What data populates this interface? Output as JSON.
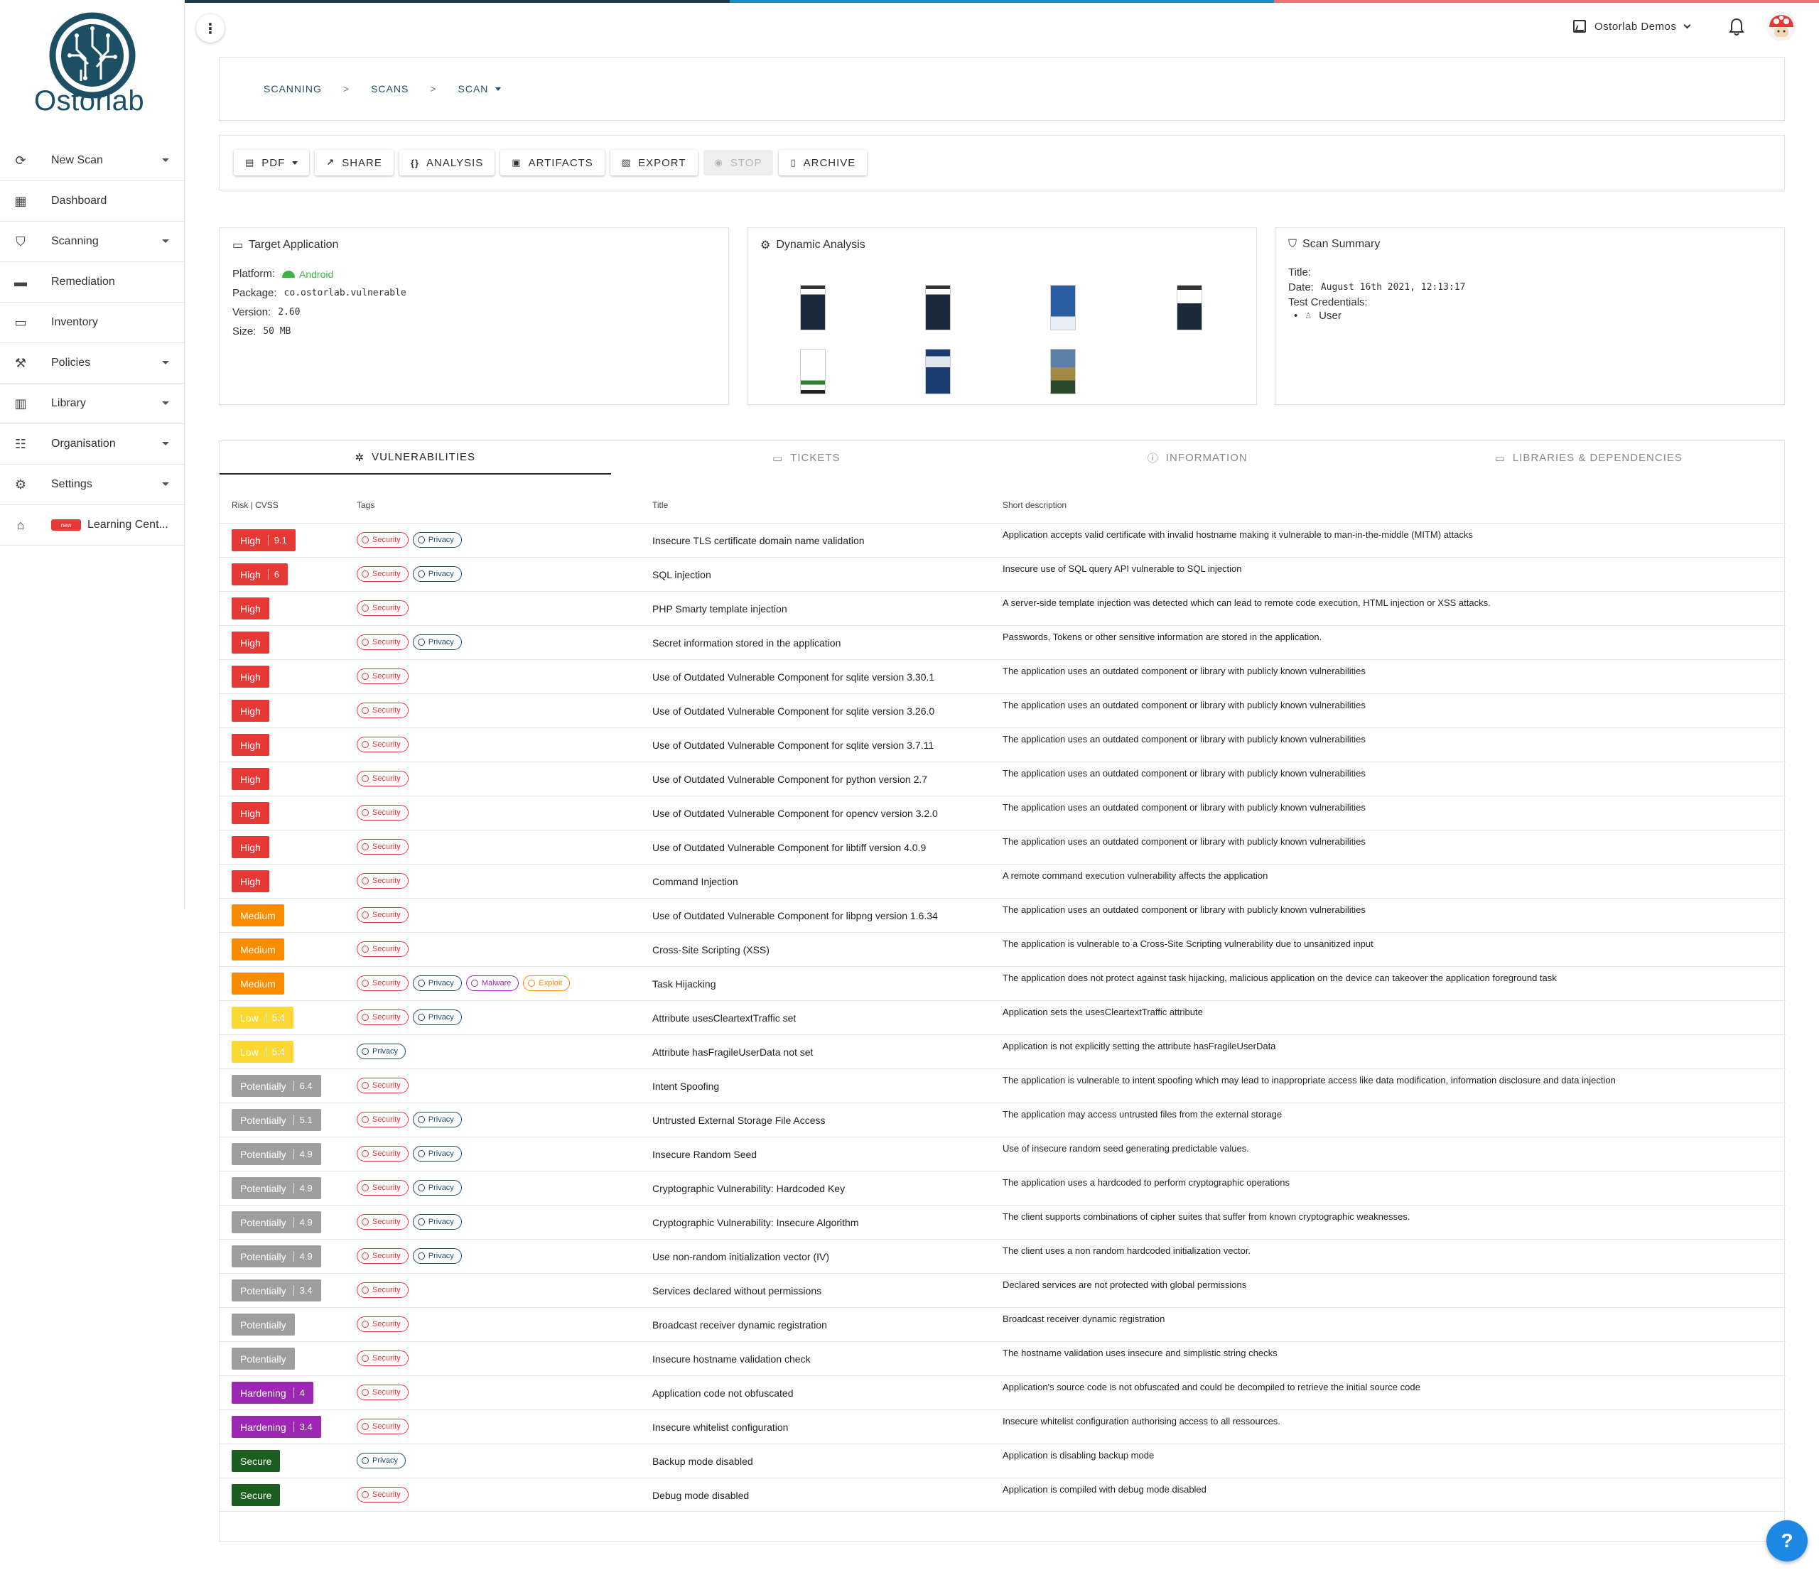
{
  "brand": {
    "name": "Ostorlab"
  },
  "stripe_colors": [
    "#1d3b4a",
    "#1e88c5",
    "#e57373"
  ],
  "sidebar": {
    "items": [
      {
        "label": "New Scan",
        "icon": "new-scan-icon",
        "dropdown": true
      },
      {
        "label": "Dashboard",
        "icon": "dashboard-icon",
        "dropdown": false
      },
      {
        "label": "Scanning",
        "icon": "shield-icon",
        "dropdown": true
      },
      {
        "label": "Remediation",
        "icon": "ticket-icon",
        "dropdown": false
      },
      {
        "label": "Inventory",
        "icon": "calendar-icon",
        "dropdown": false
      },
      {
        "label": "Policies",
        "icon": "gavel-icon",
        "dropdown": true
      },
      {
        "label": "Library",
        "icon": "library-icon",
        "dropdown": true
      },
      {
        "label": "Organisation",
        "icon": "people-icon",
        "dropdown": true
      },
      {
        "label": "Settings",
        "icon": "gear-icon",
        "dropdown": true
      },
      {
        "label": "Learning Cent...",
        "icon": "school-icon",
        "dropdown": false,
        "badge": "new"
      }
    ]
  },
  "header": {
    "org_name": "Ostorlab Demos"
  },
  "breadcrumb": [
    "SCANNING",
    "SCANS",
    "SCAN"
  ],
  "toolbar": {
    "buttons": [
      {
        "label": "PDF",
        "icon": "pdf-icon",
        "disabled": false,
        "dropdown": true
      },
      {
        "label": "SHARE",
        "icon": "share-icon",
        "disabled": false
      },
      {
        "label": "ANALYSIS",
        "icon": "braces-icon",
        "disabled": false
      },
      {
        "label": "ARTIFACTS",
        "icon": "archive-box-icon",
        "disabled": false
      },
      {
        "label": "EXPORT",
        "icon": "file-export-icon",
        "disabled": false
      },
      {
        "label": "STOP",
        "icon": "stop-circle-icon",
        "disabled": true
      },
      {
        "label": "ARCHIVE",
        "icon": "trash-icon",
        "disabled": false
      }
    ]
  },
  "target": {
    "title": "Target Application",
    "platform_label": "Platform:",
    "platform": "Android",
    "package_label": "Package:",
    "package": "co.ostorlab.vulnerable",
    "version_label": "Version:",
    "version": "2.60",
    "size_label": "Size:",
    "size": "50 MB"
  },
  "dynamic": {
    "title": "Dynamic Analysis"
  },
  "summary": {
    "title": "Scan Summary",
    "title_label": "Title:",
    "date_label": "Date:",
    "date": "August 16th 2021, 12:13:17",
    "creds_label": "Test Credentials:",
    "cred_user": "User"
  },
  "tabs": [
    {
      "label": "VULNERABILITIES",
      "icon": "bug-icon",
      "active": true
    },
    {
      "label": "TICKETS",
      "icon": "ticket-icon",
      "active": false
    },
    {
      "label": "INFORMATION",
      "icon": "info-icon",
      "active": false
    },
    {
      "label": "LIBRARIES & DEPENDENCIES",
      "icon": "calendar-icon",
      "active": false
    }
  ],
  "table": {
    "headers": {
      "risk": "Risk | CVSS",
      "tags": "Tags",
      "title": "Title",
      "desc": "Short description"
    },
    "risk_colors": {
      "High": "#e53935",
      "Medium": "#fb8c00",
      "Low": "#fdd835",
      "Potentially": "#9e9e9e",
      "Hardening": "#9c27b0",
      "Secure": "#1b5e20"
    },
    "rows": [
      {
        "risk": "High",
        "cvss": "9.1",
        "tags": [
          "Security",
          "Privacy"
        ],
        "title": "Insecure TLS certificate domain name validation",
        "desc": "Application accepts valid certificate with invalid hostname making it vulnerable to man-in-the-middle (MITM) attacks"
      },
      {
        "risk": "High",
        "cvss": "6",
        "tags": [
          "Security",
          "Privacy"
        ],
        "title": "SQL injection",
        "desc": "Insecure use of SQL query API vulnerable to SQL injection"
      },
      {
        "risk": "High",
        "cvss": "",
        "tags": [
          "Security"
        ],
        "title": "PHP Smarty template injection",
        "desc": "A server-side template injection was detected which can lead to remote code execution, HTML injection or XSS attacks."
      },
      {
        "risk": "High",
        "cvss": "",
        "tags": [
          "Security",
          "Privacy"
        ],
        "title": "Secret information stored in the application",
        "desc": "Passwords, Tokens or other sensitive information are stored in the application."
      },
      {
        "risk": "High",
        "cvss": "",
        "tags": [
          "Security"
        ],
        "title": "Use of Outdated Vulnerable Component for sqlite version 3.30.1",
        "desc": "The application uses an outdated component or library with publicly known vulnerabilities"
      },
      {
        "risk": "High",
        "cvss": "",
        "tags": [
          "Security"
        ],
        "title": "Use of Outdated Vulnerable Component for sqlite version 3.26.0",
        "desc": "The application uses an outdated component or library with publicly known vulnerabilities"
      },
      {
        "risk": "High",
        "cvss": "",
        "tags": [
          "Security"
        ],
        "title": "Use of Outdated Vulnerable Component for sqlite version 3.7.11",
        "desc": "The application uses an outdated component or library with publicly known vulnerabilities"
      },
      {
        "risk": "High",
        "cvss": "",
        "tags": [
          "Security"
        ],
        "title": "Use of Outdated Vulnerable Component for python version 2.7",
        "desc": "The application uses an outdated component or library with publicly known vulnerabilities"
      },
      {
        "risk": "High",
        "cvss": "",
        "tags": [
          "Security"
        ],
        "title": "Use of Outdated Vulnerable Component for opencv version 3.2.0",
        "desc": "The application uses an outdated component or library with publicly known vulnerabilities"
      },
      {
        "risk": "High",
        "cvss": "",
        "tags": [
          "Security"
        ],
        "title": "Use of Outdated Vulnerable Component for libtiff version 4.0.9",
        "desc": "The application uses an outdated component or library with publicly known vulnerabilities"
      },
      {
        "risk": "High",
        "cvss": "",
        "tags": [
          "Security"
        ],
        "title": "Command Injection",
        "desc": "A remote command execution vulnerability affects the application"
      },
      {
        "risk": "Medium",
        "cvss": "",
        "tags": [
          "Security"
        ],
        "title": "Use of Outdated Vulnerable Component for libpng version 1.6.34",
        "desc": "The application uses an outdated component or library with publicly known vulnerabilities"
      },
      {
        "risk": "Medium",
        "cvss": "",
        "tags": [
          "Security"
        ],
        "title": "Cross-Site Scripting (XSS)",
        "desc": "The application is vulnerable to a Cross-Site Scripting vulnerability due to unsanitized input"
      },
      {
        "risk": "Medium",
        "cvss": "",
        "tags": [
          "Security",
          "Privacy",
          "Malware",
          "Exploit"
        ],
        "title": "Task Hijacking",
        "desc": "The application does not protect against task hijacking, malicious application on the device can takeover the application foreground task"
      },
      {
        "risk": "Low",
        "cvss": "5.4",
        "tags": [
          "Security",
          "Privacy"
        ],
        "title": "Attribute usesCleartextTraffic set",
        "desc": "Application sets the usesCleartextTraffic attribute"
      },
      {
        "risk": "Low",
        "cvss": "5.4",
        "tags": [
          "Privacy"
        ],
        "title": "Attribute hasFragileUserData not set",
        "desc": "Application is not explicitly setting the attribute hasFragileUserData"
      },
      {
        "risk": "Potentially",
        "cvss": "6.4",
        "tags": [
          "Security"
        ],
        "title": "Intent Spoofing",
        "desc": "The application is vulnerable to intent spoofing which may lead to inappropriate access like data modification, information disclosure and data injection"
      },
      {
        "risk": "Potentially",
        "cvss": "5.1",
        "tags": [
          "Security",
          "Privacy"
        ],
        "title": "Untrusted External Storage File Access",
        "desc": "The application may access untrusted files from the external storage"
      },
      {
        "risk": "Potentially",
        "cvss": "4.9",
        "tags": [
          "Security",
          "Privacy"
        ],
        "title": "Insecure Random Seed",
        "desc": "Use of insecure random seed generating predictable values."
      },
      {
        "risk": "Potentially",
        "cvss": "4.9",
        "tags": [
          "Security",
          "Privacy"
        ],
        "title": "Cryptographic Vulnerability: Hardcoded Key",
        "desc": "The application uses a hardcoded to perform cryptographic operations"
      },
      {
        "risk": "Potentially",
        "cvss": "4.9",
        "tags": [
          "Security",
          "Privacy"
        ],
        "title": "Cryptographic Vulnerability: Insecure Algorithm",
        "desc": "The client supports combinations of cipher suites that suffer from known cryptographic weaknesses."
      },
      {
        "risk": "Potentially",
        "cvss": "4.9",
        "tags": [
          "Security",
          "Privacy"
        ],
        "title": "Use non-random initialization vector (IV)",
        "desc": "The client uses a non random hardcoded initialization vector."
      },
      {
        "risk": "Potentially",
        "cvss": "3.4",
        "tags": [
          "Security"
        ],
        "title": "Services declared without permissions",
        "desc": "Declared services are not protected with global permissions"
      },
      {
        "risk": "Potentially",
        "cvss": "",
        "tags": [
          "Security"
        ],
        "title": "Broadcast receiver dynamic registration",
        "desc": "Broadcast receiver dynamic registration"
      },
      {
        "risk": "Potentially",
        "cvss": "",
        "tags": [
          "Security"
        ],
        "title": "Insecure hostname validation check",
        "desc": "The hostname validation uses insecure and simplistic string checks"
      },
      {
        "risk": "Hardening",
        "cvss": "4",
        "tags": [
          "Security"
        ],
        "title": "Application code not obfuscated",
        "desc": "Application's source code is not obfuscated and could be decompiled to retrieve the initial source code"
      },
      {
        "risk": "Hardening",
        "cvss": "3.4",
        "tags": [
          "Security"
        ],
        "title": "Insecure whitelist configuration",
        "desc": "Insecure whitelist configuration authorising access to all ressources."
      },
      {
        "risk": "Secure",
        "cvss": "",
        "tags": [
          "Privacy"
        ],
        "title": "Backup mode disabled",
        "desc": "Application is disabling backup mode"
      },
      {
        "risk": "Secure",
        "cvss": "",
        "tags": [
          "Security"
        ],
        "title": "Debug mode disabled",
        "desc": "Application is compiled with debug mode disabled"
      }
    ]
  },
  "tag_styles": {
    "Security": {
      "color": "#e53935",
      "icon": "lock-icon"
    },
    "Privacy": {
      "color": "#1d4f64",
      "icon": "lock-icon"
    },
    "Malware": {
      "color": "#9c27b0",
      "icon": "shield-icon"
    },
    "Exploit": {
      "color": "#fb8c00",
      "icon": "bug-icon"
    }
  },
  "help": {
    "label": "?"
  }
}
